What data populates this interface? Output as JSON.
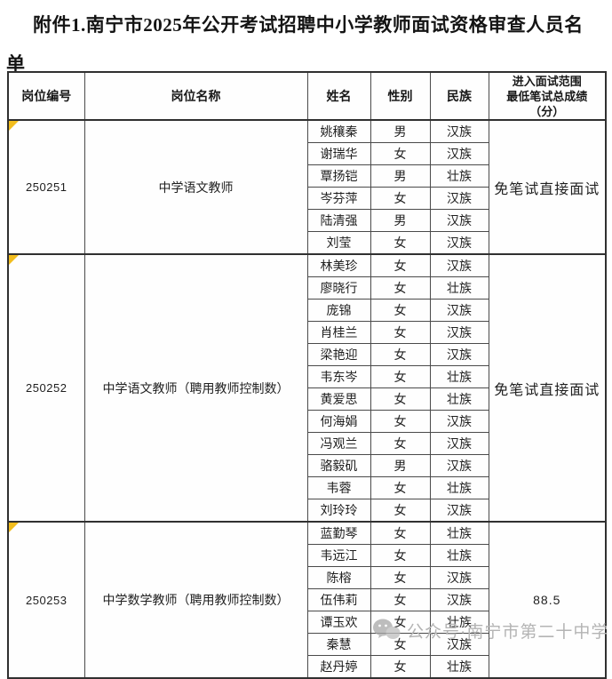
{
  "title": "附件1.南宁市2025年公开考试招聘中小学教师面试资格审查人员名单",
  "table": {
    "headers": [
      "岗位编号",
      "岗位名称",
      "姓名",
      "性别",
      "民族",
      "进入面试范围\n最低笔试总成绩\n（分）"
    ],
    "groups": [
      {
        "code": "250251",
        "position": "中学语文教师",
        "score": "免笔试直接面试",
        "members": [
          {
            "name": "姚穰秦",
            "gender": "男",
            "ethnicity": "汉族"
          },
          {
            "name": "谢瑞华",
            "gender": "女",
            "ethnicity": "汉族"
          },
          {
            "name": "覃扬铠",
            "gender": "男",
            "ethnicity": "壮族"
          },
          {
            "name": "岑芬萍",
            "gender": "女",
            "ethnicity": "汉族"
          },
          {
            "name": "陆清强",
            "gender": "男",
            "ethnicity": "汉族"
          },
          {
            "name": "刘莹",
            "gender": "女",
            "ethnicity": "汉族"
          }
        ]
      },
      {
        "code": "250252",
        "position": "中学语文教师（聘用教师控制数）",
        "score": "免笔试直接面试",
        "members": [
          {
            "name": "林美珍",
            "gender": "女",
            "ethnicity": "汉族"
          },
          {
            "name": "廖晓行",
            "gender": "女",
            "ethnicity": "壮族"
          },
          {
            "name": "庞锦",
            "gender": "女",
            "ethnicity": "汉族"
          },
          {
            "name": "肖桂兰",
            "gender": "女",
            "ethnicity": "汉族"
          },
          {
            "name": "梁艳迎",
            "gender": "女",
            "ethnicity": "汉族"
          },
          {
            "name": "韦东岑",
            "gender": "女",
            "ethnicity": "壮族"
          },
          {
            "name": "黄爱思",
            "gender": "女",
            "ethnicity": "壮族"
          },
          {
            "name": "何海娟",
            "gender": "女",
            "ethnicity": "汉族"
          },
          {
            "name": "冯观兰",
            "gender": "女",
            "ethnicity": "汉族"
          },
          {
            "name": "骆毅矶",
            "gender": "男",
            "ethnicity": "汉族"
          },
          {
            "name": "韦蓉",
            "gender": "女",
            "ethnicity": "壮族"
          },
          {
            "name": "刘玲玲",
            "gender": "女",
            "ethnicity": "汉族"
          }
        ]
      },
      {
        "code": "250253",
        "position": "中学数学教师（聘用教师控制数）",
        "score": "88.5",
        "members": [
          {
            "name": "蓝勤琴",
            "gender": "女",
            "ethnicity": "壮族"
          },
          {
            "name": "韦远江",
            "gender": "女",
            "ethnicity": "壮族"
          },
          {
            "name": "陈榕",
            "gender": "女",
            "ethnicity": "汉族"
          },
          {
            "name": "伍伟莉",
            "gender": "女",
            "ethnicity": "汉族"
          },
          {
            "name": "谭玉欢",
            "gender": "女",
            "ethnicity": "壮族"
          },
          {
            "name": "秦慧",
            "gender": "女",
            "ethnicity": "汉族"
          },
          {
            "name": "赵丹婷",
            "gender": "女",
            "ethnicity": "壮族"
          }
        ]
      }
    ]
  },
  "watermark": {
    "text": "公众号·南宁市第二十中学",
    "icon": "wechat-logo-icon"
  },
  "colors": {
    "corner_marker": "#f2bd1d",
    "border": "#4a4a4a",
    "watermark_gray": "#b4b4b4"
  }
}
